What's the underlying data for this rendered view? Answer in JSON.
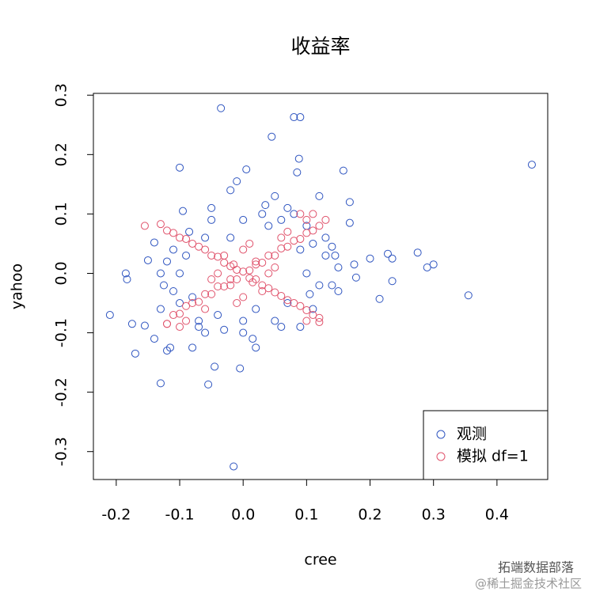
{
  "chart_data": {
    "type": "scatter",
    "title": "收益率",
    "x_label": "cree",
    "y_label": "yahoo",
    "xlim": [
      -0.236,
      0.48
    ],
    "ylim": [
      -0.347,
      0.303
    ],
    "xticks": [
      -0.2,
      -0.1,
      {
        "value": 0,
        "label": "0.0"
      },
      0.1,
      0.2,
      0.3,
      0.4
    ],
    "yticks": [
      -0.3,
      -0.2,
      -0.1,
      {
        "value": 0,
        "label": "0.0"
      },
      0.1,
      0.2,
      0.3
    ],
    "legend": "bottom-right",
    "series": [
      {
        "name": "观测",
        "color": "#2f55c0",
        "x": [
          0.455,
          0.355,
          0.3,
          0.29,
          0.275,
          0.235,
          0.235,
          0.228,
          0.215,
          0.2,
          0.178,
          0.175,
          0.168,
          0.168,
          0.158,
          0.15,
          0.145,
          -0.035,
          0.08,
          0.09,
          0.045,
          0.088,
          -0.1,
          0.085,
          0.005,
          -0.01,
          -0.015,
          -0.055,
          -0.045,
          -0.005,
          -0.13,
          -0.21,
          -0.185,
          -0.183,
          -0.17,
          -0.175,
          -0.155,
          -0.12,
          -0.115,
          -0.08,
          -0.14,
          -0.15,
          -0.14,
          -0.095,
          -0.05,
          0.12,
          0.1,
          0.13,
          0.14,
          -0.13,
          -0.1,
          0,
          0.02,
          -0.07,
          0.05,
          0.03,
          -0.02,
          0.06,
          0.11,
          -0.11,
          -0.09,
          -0.08,
          -0.06,
          0.07,
          0.09,
          -0.1,
          0.1,
          0,
          0,
          -0.05,
          0.05,
          0.08,
          -0.07,
          0.11,
          -0.11,
          0.12,
          -0.12,
          0.04,
          -0.04,
          0.06,
          -0.02,
          0.02,
          0.13,
          -0.13,
          0.09,
          0.15,
          0.14,
          -0.125,
          0.035,
          -0.03,
          0.07,
          -0.085,
          0.015,
          0.105,
          -0.06
        ],
        "values": [
          0.183,
          -0.037,
          0.015,
          0.01,
          0.035,
          -0.013,
          0.025,
          0.033,
          -0.043,
          0.025,
          -0.007,
          0.015,
          0.12,
          0.085,
          0.173,
          -0.03,
          0.03,
          0.278,
          0.263,
          0.263,
          0.23,
          0.193,
          0.178,
          0.17,
          0.175,
          0.155,
          -0.325,
          -0.187,
          -0.157,
          -0.16,
          -0.185,
          -0.07,
          0,
          -0.01,
          -0.135,
          -0.085,
          -0.088,
          -0.13,
          -0.125,
          -0.125,
          -0.11,
          0.022,
          0.052,
          0.105,
          0.11,
          0.13,
          0.08,
          0.06,
          -0.02,
          0,
          -0.05,
          -0.1,
          -0.125,
          -0.09,
          0.13,
          0.1,
          0.14,
          -0.09,
          -0.06,
          0.04,
          0.03,
          -0.04,
          0.06,
          -0.05,
          0.04,
          0,
          0,
          0.09,
          -0.08,
          0.09,
          -0.08,
          0.1,
          -0.08,
          0.05,
          -0.03,
          -0.02,
          0.02,
          0.08,
          -0.07,
          0.09,
          0.06,
          -0.06,
          0.03,
          -0.06,
          -0.09,
          0.01,
          0.045,
          -0.02,
          0.115,
          -0.095,
          0.11,
          0.07,
          -0.11,
          -0.035,
          -0.1
        ]
      },
      {
        "name": "模拟 df=1",
        "color": "#e0536c",
        "x": [
          -0.12,
          -0.11,
          -0.1,
          -0.09,
          -0.08,
          -0.07,
          -0.06,
          -0.05,
          -0.04,
          -0.03,
          -0.02,
          -0.01,
          0,
          0.01,
          0.02,
          0.03,
          0.04,
          0.05,
          0.06,
          0.07,
          0.08,
          0.09,
          0.1,
          0.11,
          0.12,
          0.13,
          -0.155,
          -0.13,
          -0.12,
          -0.11,
          -0.1,
          -0.09,
          -0.08,
          -0.07,
          -0.06,
          -0.05,
          -0.04,
          -0.03,
          -0.02,
          -0.01,
          0.01,
          0.02,
          0.03,
          0.04,
          0.05,
          0.06,
          0.07,
          0.08,
          0.09,
          0.1,
          0.11,
          0.12,
          -0.03,
          0.03,
          0,
          0,
          -0.04,
          0.04,
          0.02,
          -0.02,
          0.015,
          -0.015,
          0.05,
          -0.05,
          0.01,
          -0.01,
          0.06,
          -0.06,
          0.07,
          0.1,
          0.11,
          0.09,
          -0.1,
          -0.09,
          0.1,
          0.12,
          -0.12
        ],
        "values": [
          -0.085,
          -0.07,
          -0.068,
          -0.055,
          -0.05,
          -0.048,
          -0.035,
          -0.035,
          -0.022,
          -0.022,
          -0.01,
          -0.01,
          0.003,
          0.005,
          0.015,
          0.018,
          0.03,
          0.03,
          0.042,
          0.045,
          0.055,
          0.058,
          0.068,
          0.072,
          0.08,
          0.09,
          0.08,
          0.083,
          0.072,
          0.068,
          0.06,
          0.058,
          0.05,
          0.045,
          0.04,
          0.03,
          0.028,
          0.018,
          0.012,
          0.006,
          -0.008,
          -0.01,
          -0.02,
          -0.025,
          -0.032,
          -0.038,
          -0.045,
          -0.05,
          -0.055,
          -0.062,
          -0.07,
          -0.082,
          0.03,
          -0.03,
          0.04,
          -0.04,
          0,
          0,
          0.02,
          -0.02,
          -0.015,
          0.015,
          0.01,
          -0.01,
          0.05,
          -0.05,
          0.06,
          -0.06,
          0.07,
          0.09,
          0.1,
          0.1,
          -0.09,
          -0.08,
          -0.08,
          -0.075,
          -0.085
        ]
      }
    ]
  },
  "watermark": {
    "line1": "拓端数据部落",
    "line2": "@稀土掘金技术社区"
  }
}
